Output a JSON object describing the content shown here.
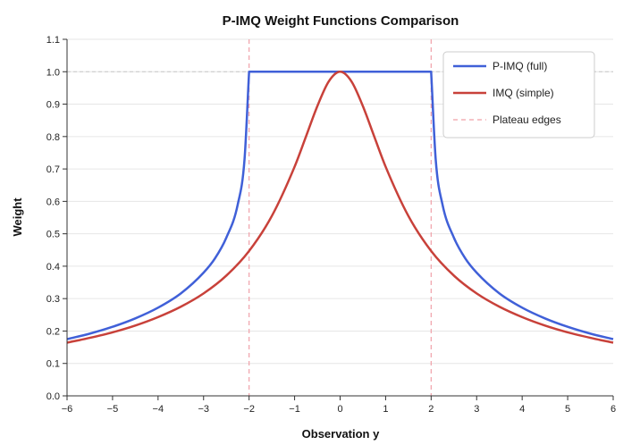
{
  "chart_data": {
    "type": "line",
    "title": "P-IMQ Weight Functions Comparison",
    "xlabel": "Observation y",
    "ylabel": "Weight",
    "xlim": [
      -6,
      6
    ],
    "ylim": [
      0,
      1.1
    ],
    "xticks": [
      -6,
      -5,
      -4,
      -3,
      -2,
      -1,
      0,
      1,
      2,
      3,
      4,
      5,
      6
    ],
    "yticks": [
      0.0,
      0.1,
      0.2,
      0.3,
      0.4,
      0.5,
      0.6,
      0.7,
      0.8,
      0.9,
      1.0,
      1.1
    ],
    "grid": true,
    "legend_position": "top-right",
    "reference_line_y": 1.0,
    "series": [
      {
        "name": "P-IMQ (full)",
        "color": "#4060d8",
        "x": [
          -6,
          -5.5,
          -5,
          -4.5,
          -4,
          -3.5,
          -3,
          -2.75,
          -2.5,
          -2.25,
          -2.1,
          -2,
          -2,
          2,
          2,
          2.1,
          2.25,
          2.5,
          2.75,
          3,
          3.5,
          4,
          4.5,
          5,
          5.5,
          6
        ],
        "values": [
          0.175,
          0.192,
          0.213,
          0.239,
          0.272,
          0.316,
          0.38,
          0.424,
          0.488,
          0.59,
          0.73,
          1.0,
          1.0,
          1.0,
          1.0,
          0.73,
          0.59,
          0.488,
          0.424,
          0.38,
          0.316,
          0.272,
          0.239,
          0.213,
          0.192,
          0.175
        ]
      },
      {
        "name": "IMQ (simple)",
        "color": "#c8413a",
        "x": [
          -6,
          -5.5,
          -5,
          -4.5,
          -4,
          -3.5,
          -3,
          -2.5,
          -2,
          -1.5,
          -1,
          -0.75,
          -0.5,
          -0.25,
          0,
          0.25,
          0.5,
          0.75,
          1,
          1.5,
          2,
          2.5,
          3,
          3.5,
          4,
          4.5,
          5,
          5.5,
          6
        ],
        "values": [
          0.164,
          0.179,
          0.196,
          0.217,
          0.243,
          0.275,
          0.316,
          0.371,
          0.447,
          0.555,
          0.707,
          0.8,
          0.894,
          0.97,
          1.0,
          0.97,
          0.894,
          0.8,
          0.707,
          0.555,
          0.447,
          0.371,
          0.316,
          0.275,
          0.243,
          0.217,
          0.196,
          0.179,
          0.164
        ]
      }
    ],
    "vlines": {
      "name": "Plateau edges",
      "color": "#f0a0a8",
      "x": [
        -2,
        2
      ]
    }
  }
}
